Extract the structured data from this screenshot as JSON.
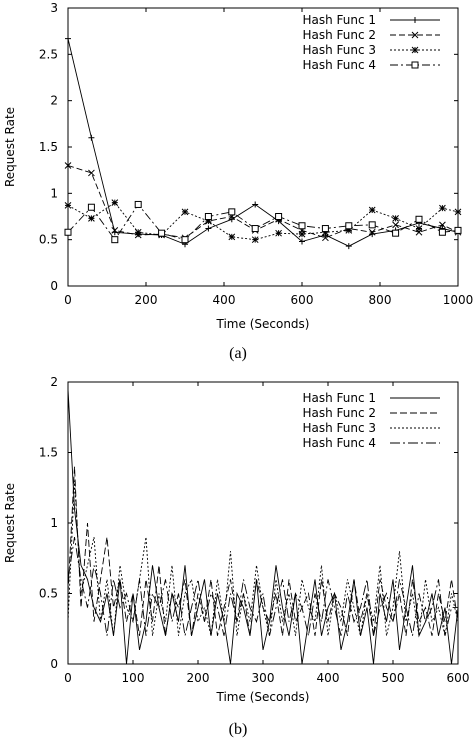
{
  "chart_data": [
    {
      "type": "line",
      "caption": "(a)",
      "xlabel": "Time (Seconds)",
      "ylabel": "Request Rate",
      "xlim": [
        0,
        1000
      ],
      "ylim": [
        0,
        3
      ],
      "xticks": [
        "0",
        "200",
        "400",
        "600",
        "800",
        "1000"
      ],
      "yticks": [
        "0",
        "0.5",
        "1",
        "1.5",
        "2",
        "2.5",
        "3"
      ],
      "legend_position": "top-right",
      "series": [
        {
          "name": "Hash Func 1",
          "marker": "plus",
          "dash": "",
          "x": [
            0,
            60,
            120,
            180,
            240,
            300,
            360,
            420,
            480,
            540,
            600,
            660,
            720,
            780,
            840,
            900,
            960,
            1000
          ],
          "y": [
            2.67,
            1.6,
            0.58,
            0.56,
            0.55,
            0.45,
            0.62,
            0.72,
            0.88,
            0.7,
            0.48,
            0.55,
            0.43,
            0.56,
            0.6,
            0.68,
            0.62,
            0.58
          ]
        },
        {
          "name": "Hash Func 2",
          "marker": "x",
          "dash": "6,3",
          "x": [
            0,
            60,
            120,
            180,
            240,
            300,
            360,
            420,
            480,
            540,
            600,
            660,
            720,
            780,
            840,
            900,
            960,
            1000
          ],
          "y": [
            1.3,
            1.22,
            0.6,
            0.55,
            0.56,
            0.52,
            0.7,
            0.75,
            0.6,
            0.72,
            0.6,
            0.52,
            0.62,
            0.58,
            0.66,
            0.58,
            0.66,
            0.58
          ]
        },
        {
          "name": "Hash Func 3",
          "marker": "star",
          "dash": "2,2",
          "x": [
            0,
            60,
            120,
            180,
            240,
            300,
            360,
            420,
            480,
            540,
            600,
            660,
            720,
            780,
            840,
            900,
            960,
            1000
          ],
          "y": [
            0.87,
            0.73,
            0.9,
            0.58,
            0.55,
            0.8,
            0.7,
            0.53,
            0.5,
            0.57,
            0.56,
            0.58,
            0.6,
            0.82,
            0.73,
            0.62,
            0.84,
            0.8
          ]
        },
        {
          "name": "Hash Func 4",
          "marker": "square",
          "dash": "8,3,2,3",
          "x": [
            0,
            60,
            120,
            180,
            240,
            300,
            360,
            420,
            480,
            540,
            600,
            660,
            720,
            780,
            840,
            900,
            960,
            1000
          ],
          "y": [
            0.58,
            0.85,
            0.5,
            0.88,
            0.57,
            0.5,
            0.75,
            0.8,
            0.62,
            0.75,
            0.65,
            0.62,
            0.65,
            0.66,
            0.57,
            0.72,
            0.58,
            0.6
          ]
        }
      ]
    },
    {
      "type": "line",
      "caption": "(b)",
      "xlabel": "Time (Seconds)",
      "ylabel": "Request Rate",
      "xlim": [
        0,
        600
      ],
      "ylim": [
        0,
        2
      ],
      "xticks": [
        "0",
        "100",
        "200",
        "300",
        "400",
        "500",
        "600"
      ],
      "yticks": [
        "0",
        "0.5",
        "1",
        "1.5",
        "2"
      ],
      "legend_position": "top-right",
      "series": [
        {
          "name": "Hash Func 1",
          "marker": "",
          "dash": "",
          "x": [
            0,
            10,
            20,
            30,
            40,
            50,
            60,
            70,
            80,
            90,
            100,
            110,
            120,
            130,
            140,
            150,
            160,
            170,
            180,
            190,
            200,
            210,
            220,
            230,
            240,
            250,
            260,
            270,
            280,
            290,
            300,
            310,
            320,
            330,
            340,
            350,
            360,
            370,
            380,
            390,
            400,
            410,
            420,
            430,
            440,
            450,
            460,
            470,
            480,
            490,
            500,
            510,
            520,
            530,
            540,
            550,
            560,
            570,
            580,
            590,
            600
          ],
          "y": [
            1.95,
            1.1,
            0.7,
            0.6,
            0.4,
            0.3,
            0.5,
            0.2,
            0.6,
            0.0,
            0.5,
            0.1,
            0.3,
            0.7,
            0.4,
            0.2,
            0.5,
            0.3,
            0.7,
            0.2,
            0.4,
            0.6,
            0.2,
            0.5,
            0.3,
            0.0,
            0.5,
            0.4,
            0.2,
            0.6,
            0.1,
            0.3,
            0.7,
            0.4,
            0.2,
            0.5,
            0.0,
            0.3,
            0.6,
            0.2,
            0.4,
            0.5,
            0.1,
            0.3,
            0.6,
            0.2,
            0.4,
            0.0,
            0.5,
            0.3,
            0.6,
            0.1,
            0.4,
            0.7,
            0.2,
            0.3,
            0.5,
            0.2,
            0.4,
            0.0,
            0.4
          ]
        },
        {
          "name": "Hash Func 2",
          "marker": "",
          "dash": "7,3",
          "x": [
            0,
            10,
            20,
            30,
            40,
            50,
            60,
            70,
            80,
            90,
            100,
            110,
            120,
            130,
            140,
            150,
            160,
            170,
            180,
            190,
            200,
            210,
            220,
            230,
            240,
            250,
            260,
            270,
            280,
            290,
            300,
            310,
            320,
            330,
            340,
            350,
            360,
            370,
            380,
            390,
            400,
            410,
            420,
            430,
            440,
            450,
            460,
            470,
            480,
            490,
            500,
            510,
            520,
            530,
            540,
            550,
            560,
            570,
            580,
            590,
            600
          ],
          "y": [
            0.5,
            1.4,
            0.4,
            1.0,
            0.3,
            0.6,
            0.9,
            0.4,
            0.6,
            0.3,
            0.5,
            0.2,
            0.6,
            0.3,
            0.7,
            0.2,
            0.5,
            0.4,
            0.6,
            0.2,
            0.5,
            0.3,
            0.6,
            0.2,
            0.4,
            0.6,
            0.3,
            0.5,
            0.2,
            0.6,
            0.4,
            0.3,
            0.5,
            0.2,
            0.6,
            0.3,
            0.4,
            0.5,
            0.2,
            0.6,
            0.3,
            0.5,
            0.4,
            0.2,
            0.6,
            0.3,
            0.5,
            0.2,
            0.6,
            0.4,
            0.3,
            0.5,
            0.2,
            0.6,
            0.3,
            0.4,
            0.2,
            0.5,
            0.3,
            0.6,
            0.3
          ]
        },
        {
          "name": "Hash Func 3",
          "marker": "",
          "dash": "2,2",
          "x": [
            0,
            10,
            20,
            30,
            40,
            50,
            60,
            70,
            80,
            90,
            100,
            110,
            120,
            130,
            140,
            150,
            160,
            170,
            180,
            190,
            200,
            210,
            220,
            230,
            240,
            250,
            260,
            270,
            280,
            290,
            300,
            310,
            320,
            330,
            340,
            350,
            360,
            370,
            380,
            390,
            400,
            410,
            420,
            430,
            440,
            450,
            460,
            470,
            480,
            490,
            500,
            510,
            520,
            530,
            540,
            550,
            560,
            570,
            580,
            590,
            600
          ],
          "y": [
            0.3,
            1.3,
            0.5,
            0.7,
            0.9,
            0.3,
            0.6,
            0.2,
            0.7,
            0.4,
            0.3,
            0.6,
            0.9,
            0.2,
            0.5,
            0.3,
            0.7,
            0.2,
            0.5,
            0.6,
            0.3,
            0.4,
            0.2,
            0.6,
            0.3,
            0.8,
            0.2,
            0.5,
            0.3,
            0.7,
            0.4,
            0.2,
            0.6,
            0.3,
            0.5,
            0.2,
            0.6,
            0.4,
            0.3,
            0.7,
            0.2,
            0.5,
            0.3,
            0.6,
            0.4,
            0.2,
            0.5,
            0.3,
            0.7,
            0.2,
            0.4,
            0.8,
            0.3,
            0.5,
            0.2,
            0.6,
            0.3,
            0.4,
            0.2,
            0.5,
            0.3
          ]
        },
        {
          "name": "Hash Func 4",
          "marker": "",
          "dash": "10,3,2,3",
          "x": [
            0,
            10,
            20,
            30,
            40,
            50,
            60,
            70,
            80,
            90,
            100,
            110,
            120,
            130,
            140,
            150,
            160,
            170,
            180,
            190,
            200,
            210,
            220,
            230,
            240,
            250,
            260,
            270,
            280,
            290,
            300,
            310,
            320,
            330,
            340,
            350,
            360,
            370,
            380,
            390,
            400,
            410,
            420,
            430,
            440,
            450,
            460,
            470,
            480,
            490,
            500,
            510,
            520,
            530,
            540,
            550,
            560,
            570,
            580,
            590,
            600
          ],
          "y": [
            0.6,
            0.9,
            0.6,
            0.4,
            0.7,
            0.5,
            0.2,
            0.6,
            0.4,
            0.5,
            0.3,
            0.6,
            0.2,
            0.5,
            0.4,
            0.6,
            0.3,
            0.5,
            0.2,
            0.4,
            0.6,
            0.3,
            0.5,
            0.4,
            0.2,
            0.5,
            0.3,
            0.6,
            0.4,
            0.3,
            0.5,
            0.2,
            0.4,
            0.6,
            0.3,
            0.5,
            0.4,
            0.2,
            0.5,
            0.3,
            0.6,
            0.4,
            0.2,
            0.5,
            0.3,
            0.4,
            0.6,
            0.2,
            0.4,
            0.5,
            0.3,
            0.6,
            0.4,
            0.2,
            0.5,
            0.3,
            0.4,
            0.6,
            0.2,
            0.4,
            0.4
          ]
        }
      ]
    }
  ]
}
